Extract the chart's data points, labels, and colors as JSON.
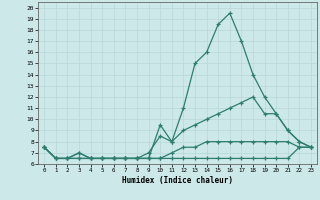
{
  "xlabel": "Humidex (Indice chaleur)",
  "x": [
    0,
    1,
    2,
    3,
    4,
    5,
    6,
    7,
    8,
    9,
    10,
    11,
    12,
    13,
    14,
    15,
    16,
    17,
    18,
    19,
    20,
    21,
    22,
    23
  ],
  "line_max": [
    7.5,
    6.5,
    6.5,
    7.0,
    6.5,
    6.5,
    6.5,
    6.5,
    6.5,
    6.5,
    9.5,
    8.0,
    11.0,
    15.0,
    16.0,
    18.5,
    19.5,
    17.0,
    14.0,
    12.0,
    10.5,
    9.0,
    8.0,
    7.5
  ],
  "line_mean": [
    7.5,
    6.5,
    6.5,
    7.0,
    6.5,
    6.5,
    6.5,
    6.5,
    6.5,
    7.0,
    8.5,
    8.0,
    9.0,
    9.5,
    10.0,
    10.5,
    11.0,
    11.5,
    12.0,
    10.5,
    10.5,
    9.0,
    8.0,
    7.5
  ],
  "line_min": [
    7.5,
    6.5,
    6.5,
    6.5,
    6.5,
    6.5,
    6.5,
    6.5,
    6.5,
    6.5,
    6.5,
    7.0,
    7.5,
    7.5,
    8.0,
    8.0,
    8.0,
    8.0,
    8.0,
    8.0,
    8.0,
    8.0,
    7.5,
    7.5
  ],
  "line_extra": [
    7.5,
    6.5,
    6.5,
    6.5,
    6.5,
    6.5,
    6.5,
    6.5,
    6.5,
    6.5,
    6.5,
    6.5,
    6.5,
    6.5,
    6.5,
    6.5,
    6.5,
    6.5,
    6.5,
    6.5,
    6.5,
    6.5,
    7.5,
    7.5
  ],
  "color": "#2e7d6e",
  "bg_color": "#cce8e8",
  "grid_color": "#b8d8d8",
  "ylim_min": 6,
  "ylim_max": 20
}
